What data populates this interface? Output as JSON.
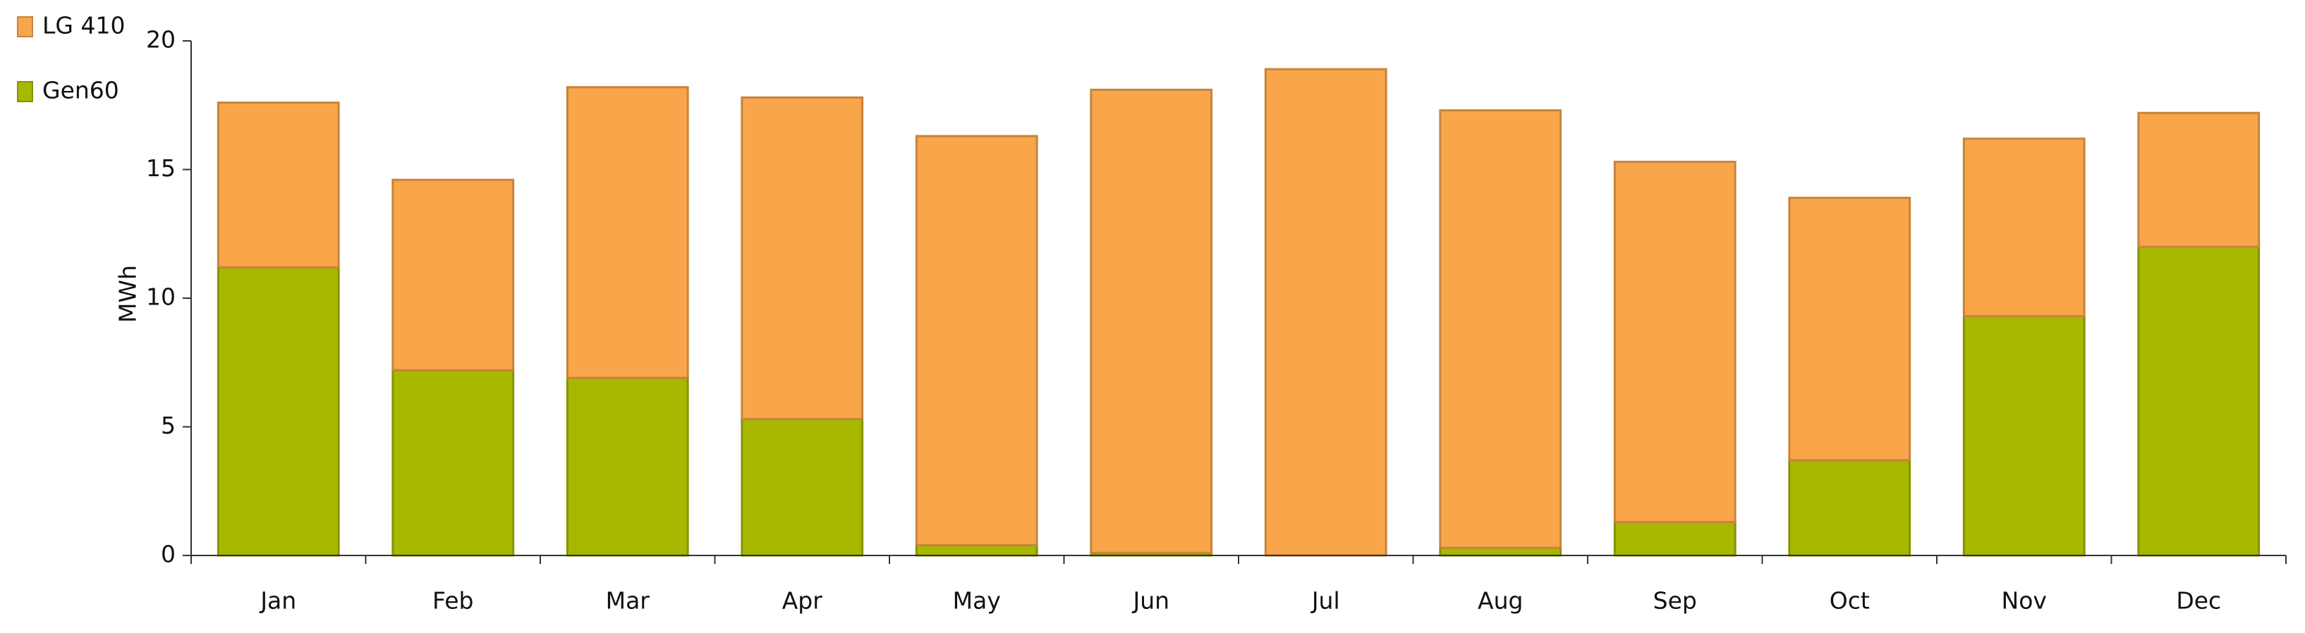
{
  "chart_data": {
    "type": "stacked_bar",
    "y_label": "MWh",
    "categories": [
      "Jan",
      "Feb",
      "Mar",
      "Apr",
      "May",
      "Jun",
      "Jul",
      "Aug",
      "Sep",
      "Oct",
      "Nov",
      "Dec"
    ],
    "series": [
      {
        "name": "LG 410",
        "color": "#f9a54a",
        "values": [
          6.4,
          7.4,
          11.3,
          12.5,
          15.9,
          18.0,
          18.9,
          17.0,
          14.0,
          10.2,
          6.9,
          5.2
        ]
      },
      {
        "name": "Gen60",
        "color": "#a8b800",
        "values": [
          11.2,
          7.2,
          6.9,
          5.3,
          0.4,
          0.1,
          0,
          0.3,
          1.3,
          3.7,
          9.3,
          12.0
        ]
      }
    ],
    "ylim": [
      0,
      20
    ],
    "yticks": [
      0,
      5,
      10,
      15,
      20
    ],
    "legend": "top-left"
  }
}
